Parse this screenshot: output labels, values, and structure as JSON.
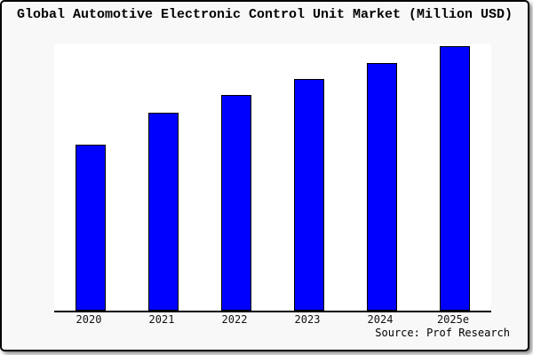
{
  "header": {
    "title": "Global Automotive Electronic Control Unit Market (Million USD)"
  },
  "footer": {
    "source": "Source: Prof Research"
  },
  "colors": {
    "bar_fill": "#0000ff",
    "bar_border": "#000000",
    "figure_background": "#f8f8f8",
    "plot_background": "#ffffff",
    "axis_line": "#000000",
    "card_border": "#000000"
  },
  "chart_data": {
    "type": "bar",
    "title": "Global Automotive Electronic Control Unit Market (Million USD)",
    "categories": [
      "2020",
      "2021",
      "2022",
      "2023",
      "2024",
      "2025e"
    ],
    "values": [
      62.2,
      74.5,
      81.0,
      86.9,
      93.0,
      99.3
    ],
    "xlabel": "",
    "ylabel": "",
    "ylim": [
      0,
      100
    ],
    "y_axis_visible": false,
    "data_labels_visible": false,
    "grid": false,
    "legend": false,
    "source_annotation": "Source: Prof Research"
  }
}
